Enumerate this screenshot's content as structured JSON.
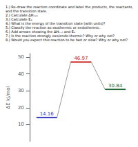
{
  "chart_data": {
    "type": "levels",
    "title": "1.) Re-draw the reaction coordinate and label the products, the reactants, and the transition state.\n2.) Calculate ΔHₓₓₙ\n3.) Calculate Eₐ\n4.) What is the energy of the transition state (with units)?\n5.) Classify the reaction as exothermic or endothermic.\n6.) Add arrows showing the ΔHₜ₋ₙ and Eₐ\n7.) Is the reaction strongly exo/endo-thermic? Why or why not?\n8.) Would you expect this reaction to be fast or slow? Why or why not?",
    "categories": [
      null,
      null,
      null
    ],
    "values": [
      14.16,
      46.97,
      30.84
    ],
    "colors": [
      "#3333bb",
      "#cc2222",
      "#226633"
    ],
    "color": "#999999",
    "ylabel": "ΔE kJ/mol",
    "ylim": [
      0,
      52
    ],
    "yticks": [
      10,
      20,
      30,
      40,
      50
    ],
    "data_labels": true,
    "grid": false
  }
}
